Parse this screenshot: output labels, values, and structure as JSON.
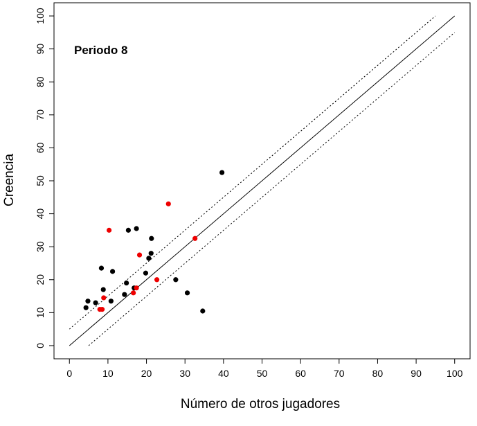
{
  "chart_data": {
    "type": "scatter",
    "title": "",
    "annotation": "Periodo  8",
    "xlabel": "Número de otros jugadores",
    "ylabel": "Creencia",
    "xlim": [
      -4,
      104
    ],
    "ylim": [
      -4,
      104
    ],
    "xticks": [
      "0",
      "10",
      "20",
      "30",
      "40",
      "50",
      "60",
      "70",
      "80",
      "90",
      "100"
    ],
    "yticks": [
      "0",
      "10",
      "20",
      "30",
      "40",
      "50",
      "60",
      "70",
      "80",
      "90",
      "100"
    ],
    "grid": false,
    "legend": "none",
    "reference_lines": [
      {
        "style": "solid",
        "points": [
          [
            0,
            0
          ],
          [
            100,
            100
          ]
        ]
      },
      {
        "style": "dotted",
        "points": [
          [
            0,
            5
          ],
          [
            95,
            100
          ]
        ]
      },
      {
        "style": "dotted",
        "points": [
          [
            5,
            0
          ],
          [
            100,
            95
          ]
        ]
      }
    ],
    "series": [
      {
        "color": "#000000",
        "points": [
          [
            4.3,
            11.5
          ],
          [
            4.8,
            13.5
          ],
          [
            6.8,
            13.0
          ],
          [
            8.3,
            23.5
          ],
          [
            8.8,
            17.0
          ],
          [
            10.8,
            13.5
          ],
          [
            11.2,
            22.5
          ],
          [
            14.3,
            15.5
          ],
          [
            14.8,
            19.0
          ],
          [
            15.3,
            35.0
          ],
          [
            16.8,
            17.5
          ],
          [
            17.4,
            35.5
          ],
          [
            19.8,
            22.0
          ],
          [
            20.6,
            26.5
          ],
          [
            21.2,
            28.0
          ],
          [
            21.3,
            32.5
          ],
          [
            27.6,
            20.0
          ],
          [
            30.6,
            16.0
          ],
          [
            34.6,
            10.5
          ],
          [
            39.6,
            52.5
          ]
        ]
      },
      {
        "color": "#ee0000",
        "points": [
          [
            7.9,
            11.0
          ],
          [
            8.5,
            11.0
          ],
          [
            8.9,
            14.5
          ],
          [
            10.3,
            35.0
          ],
          [
            16.6,
            16.0
          ],
          [
            17.4,
            17.5
          ],
          [
            18.2,
            27.5
          ],
          [
            22.7,
            20.0
          ],
          [
            25.7,
            43.0
          ],
          [
            32.6,
            32.5
          ]
        ]
      }
    ]
  }
}
